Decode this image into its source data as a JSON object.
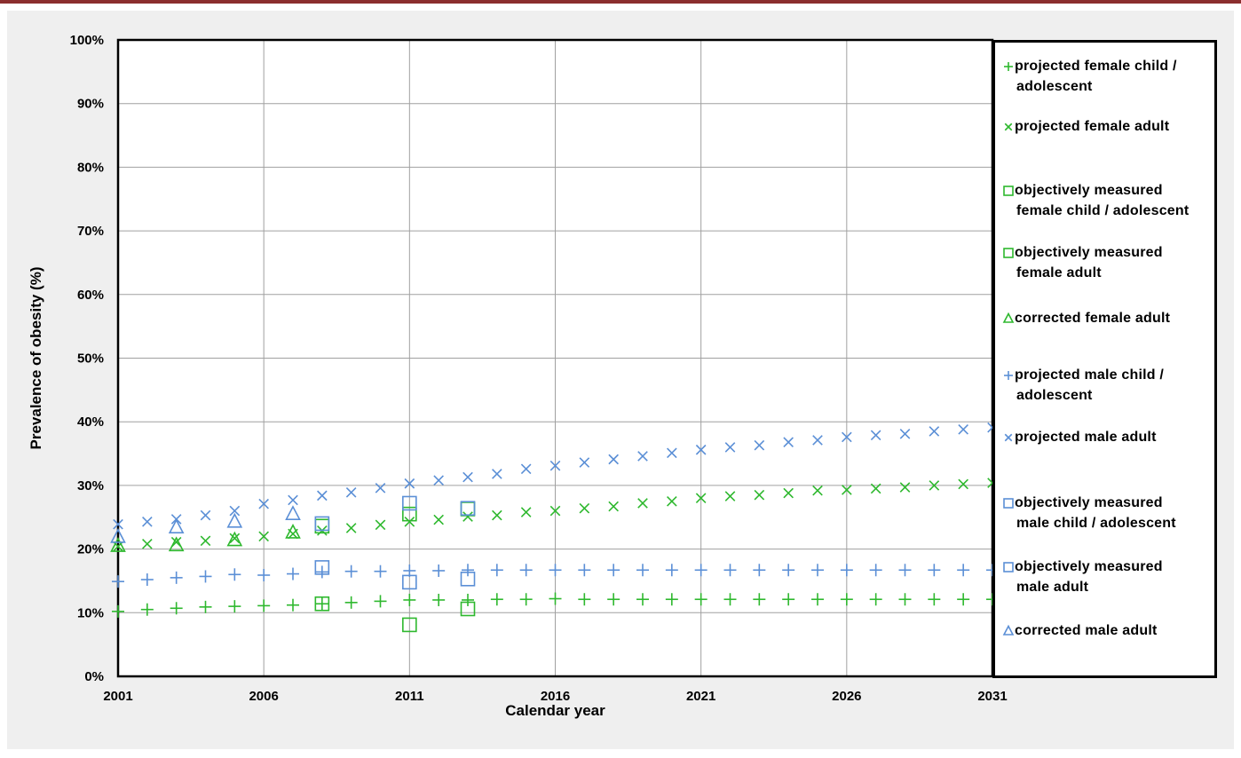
{
  "chart_data": {
    "type": "scatter",
    "title": "",
    "xlabel": "Calendar year",
    "ylabel": "Prevalence of obesity  (%)",
    "xlim": [
      2001,
      2031
    ],
    "ylim": [
      0,
      100
    ],
    "x_ticks": [
      2001,
      2006,
      2011,
      2016,
      2021,
      2026,
      2031
    ],
    "y_ticks": [
      "0%",
      "10%",
      "20%",
      "30%",
      "40%",
      "50%",
      "60%",
      "70%",
      "80%",
      "90%",
      "100%"
    ],
    "grid": true,
    "legend_position": "right",
    "series": [
      {
        "name": "projected female child / adolescent",
        "marker": "plus",
        "color": "#2eb82e",
        "x": [
          2001,
          2002,
          2003,
          2004,
          2005,
          2006,
          2007,
          2008,
          2009,
          2010,
          2011,
          2012,
          2013,
          2014,
          2015,
          2016,
          2017,
          2018,
          2019,
          2020,
          2021,
          2022,
          2023,
          2024,
          2025,
          2026,
          2027,
          2028,
          2029,
          2030,
          2031
        ],
        "y": [
          10.2,
          10.5,
          10.7,
          10.9,
          11.0,
          11.1,
          11.2,
          11.4,
          11.6,
          11.8,
          12.0,
          12.0,
          12.0,
          12.1,
          12.1,
          12.2,
          12.1,
          12.1,
          12.1,
          12.1,
          12.1,
          12.1,
          12.1,
          12.1,
          12.1,
          12.1,
          12.1,
          12.1,
          12.1,
          12.1,
          12.1
        ]
      },
      {
        "name": "projected female adult",
        "marker": "cross",
        "color": "#2eb82e",
        "x": [
          2001,
          2002,
          2003,
          2004,
          2005,
          2006,
          2007,
          2008,
          2009,
          2010,
          2011,
          2012,
          2013,
          2014,
          2015,
          2016,
          2017,
          2018,
          2019,
          2020,
          2021,
          2022,
          2023,
          2024,
          2025,
          2026,
          2027,
          2028,
          2029,
          2030,
          2031
        ],
        "y": [
          20.4,
          20.8,
          21.1,
          21.3,
          21.7,
          22.0,
          22.4,
          22.9,
          23.3,
          23.8,
          24.3,
          24.6,
          25.1,
          25.3,
          25.8,
          26.0,
          26.4,
          26.7,
          27.2,
          27.5,
          28.0,
          28.3,
          28.5,
          28.8,
          29.2,
          29.3,
          29.5,
          29.7,
          30.0,
          30.2,
          30.4
        ]
      },
      {
        "name": "objectively measured female child / adolescent",
        "marker": "square",
        "color": "#2eb82e",
        "x": [
          2008,
          2011,
          2013
        ],
        "y": [
          11.4,
          8.1,
          10.6
        ]
      },
      {
        "name": "objectively measured female adult",
        "marker": "square",
        "color": "#2eb82e",
        "x": [
          2008,
          2011,
          2013
        ],
        "y": [
          23.6,
          25.5,
          26.3
        ]
      },
      {
        "name": "corrected female adult",
        "marker": "triangle",
        "color": "#2eb82e",
        "x": [
          2001,
          2003,
          2005,
          2007
        ],
        "y": [
          20.5,
          20.6,
          21.4,
          22.6
        ]
      },
      {
        "name": "projected male child / adolescent",
        "marker": "plus",
        "color": "#5b8fd6",
        "x": [
          2001,
          2002,
          2003,
          2004,
          2005,
          2006,
          2007,
          2008,
          2009,
          2010,
          2011,
          2012,
          2013,
          2014,
          2015,
          2016,
          2017,
          2018,
          2019,
          2020,
          2021,
          2022,
          2023,
          2024,
          2025,
          2026,
          2027,
          2028,
          2029,
          2030,
          2031
        ],
        "y": [
          14.9,
          15.2,
          15.5,
          15.7,
          16.0,
          15.9,
          16.1,
          16.4,
          16.5,
          16.5,
          16.6,
          16.6,
          16.7,
          16.7,
          16.7,
          16.7,
          16.7,
          16.7,
          16.7,
          16.7,
          16.7,
          16.7,
          16.7,
          16.7,
          16.7,
          16.7,
          16.7,
          16.7,
          16.7,
          16.7,
          16.7
        ]
      },
      {
        "name": "projected male adult",
        "marker": "cross",
        "color": "#5b8fd6",
        "x": [
          2001,
          2002,
          2003,
          2004,
          2005,
          2006,
          2007,
          2008,
          2009,
          2010,
          2011,
          2012,
          2013,
          2014,
          2015,
          2016,
          2017,
          2018,
          2019,
          2020,
          2021,
          2022,
          2023,
          2024,
          2025,
          2026,
          2027,
          2028,
          2029,
          2030,
          2031
        ],
        "y": [
          23.9,
          24.3,
          24.7,
          25.3,
          26.0,
          27.1,
          27.7,
          28.4,
          28.9,
          29.6,
          30.3,
          30.8,
          31.3,
          31.8,
          32.6,
          33.1,
          33.6,
          34.1,
          34.6,
          35.1,
          35.6,
          36.0,
          36.3,
          36.8,
          37.1,
          37.6,
          37.9,
          38.1,
          38.5,
          38.8,
          39.1
        ]
      },
      {
        "name": "objectively measured male child / adolescent",
        "marker": "square",
        "color": "#5b8fd6",
        "x": [
          2008,
          2011,
          2013
        ],
        "y": [
          17.1,
          14.8,
          15.3
        ]
      },
      {
        "name": "objectively measured male adult",
        "marker": "square",
        "color": "#5b8fd6",
        "x": [
          2008,
          2011,
          2013
        ],
        "y": [
          24.0,
          27.2,
          26.4
        ]
      },
      {
        "name": "corrected  male adult",
        "marker": "triangle",
        "color": "#5b8fd6",
        "x": [
          2001,
          2003,
          2005,
          2007
        ],
        "y": [
          21.9,
          23.4,
          24.3,
          25.5
        ]
      }
    ]
  },
  "legend": {
    "items": [
      {
        "lines": [
          "projected female child /",
          "adolescent"
        ],
        "marker": "plus",
        "color": "#2eb82e"
      },
      {
        "lines": [
          "projected female adult"
        ],
        "marker": "cross",
        "color": "#2eb82e"
      },
      {
        "lines": [
          "objectively measured",
          "female child / adolescent"
        ],
        "marker": "square",
        "color": "#2eb82e"
      },
      {
        "lines": [
          "objectively measured",
          "female adult"
        ],
        "marker": "square",
        "color": "#2eb82e"
      },
      {
        "lines": [
          "corrected female adult"
        ],
        "marker": "triangle",
        "color": "#2eb82e"
      },
      {
        "lines": [
          "projected male child /",
          "adolescent"
        ],
        "marker": "plus",
        "color": "#5b8fd6"
      },
      {
        "lines": [
          "projected male adult"
        ],
        "marker": "cross",
        "color": "#5b8fd6"
      },
      {
        "lines": [
          "objectively measured",
          "male child / adolescent"
        ],
        "marker": "square",
        "color": "#5b8fd6"
      },
      {
        "lines": [
          "objectively measured",
          "male adult"
        ],
        "marker": "square",
        "color": "#5b8fd6"
      },
      {
        "lines": [
          "corrected  male adult"
        ],
        "marker": "triangle",
        "color": "#5b8fd6"
      }
    ]
  },
  "colors": {
    "top_rule": "#8b2e2e",
    "panel": "#efefef",
    "grid": "#a0a0a0"
  }
}
